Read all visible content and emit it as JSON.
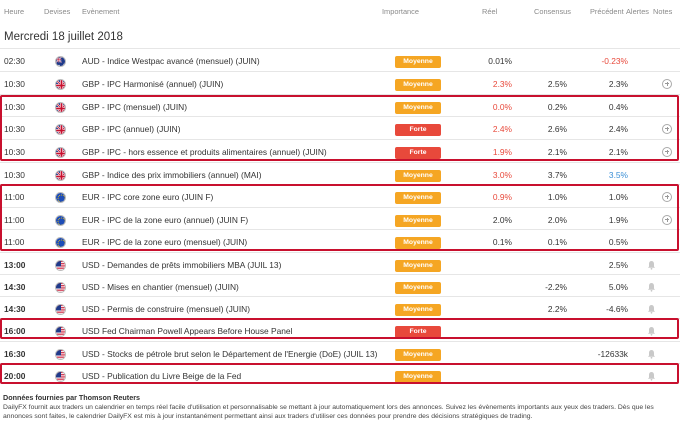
{
  "header": {
    "time": "Heure",
    "currency": "Devises",
    "event": "Evènement",
    "importance": "Importance",
    "actual": "Réel",
    "consensus": "Consensus",
    "previous": "Précédent",
    "alerts": "Alertes",
    "notes": "Notes"
  },
  "date_label": "Mercredi 18 juillet 2018",
  "colors": {
    "medium": "#f5a623",
    "high": "#e8493b",
    "negative": "#e8493b",
    "positive": "#3a8fd6",
    "highlight": "#c8102e"
  },
  "rows": [
    {
      "time": "02:30",
      "flag": "au",
      "event": "AUD - Indice Westpac avancé (mensuel) (JUIN)",
      "importance": "Moyenne",
      "level": "medium",
      "actual": "0.01%",
      "actual_color": "",
      "consensus": "",
      "previous": "-0.23%",
      "previous_color": "red",
      "icon": ""
    },
    {
      "time": "10:30",
      "flag": "gb",
      "event": "GBP - IPC Harmonisé (annuel) (JUIN)",
      "importance": "Moyenne",
      "level": "medium",
      "actual": "2.3%",
      "actual_color": "red",
      "consensus": "2.5%",
      "previous": "2.3%",
      "previous_color": "",
      "icon": "plus"
    },
    {
      "time": "10:30",
      "flag": "gb",
      "event": "GBP - IPC (mensuel) (JUIN)",
      "importance": "Moyenne",
      "level": "medium",
      "actual": "0.0%",
      "actual_color": "red",
      "consensus": "0.2%",
      "previous": "0.4%",
      "previous_color": "",
      "icon": ""
    },
    {
      "time": "10:30",
      "flag": "gb",
      "event": "GBP - IPC (annuel) (JUIN)",
      "importance": "Forte",
      "level": "high",
      "actual": "2.4%",
      "actual_color": "red",
      "consensus": "2.6%",
      "previous": "2.4%",
      "previous_color": "",
      "icon": "plus"
    },
    {
      "time": "10:30",
      "flag": "gb",
      "event": "GBP - IPC - hors essence et produits alimentaires (annuel) (JUIN)",
      "importance": "Forte",
      "level": "high",
      "actual": "1.9%",
      "actual_color": "red",
      "consensus": "2.1%",
      "previous": "2.1%",
      "previous_color": "",
      "icon": "plus"
    },
    {
      "time": "10:30",
      "flag": "gb",
      "event": "GBP - Indice des prix immobiliers (annuel) (MAI)",
      "importance": "Moyenne",
      "level": "medium",
      "actual": "3.0%",
      "actual_color": "red",
      "consensus": "3.7%",
      "previous": "3.5%",
      "previous_color": "blue",
      "icon": ""
    },
    {
      "time": "11:00",
      "flag": "eu",
      "event": "EUR - IPC core zone euro (JUIN F)",
      "importance": "Moyenne",
      "level": "medium",
      "actual": "0.9%",
      "actual_color": "red",
      "consensus": "1.0%",
      "previous": "1.0%",
      "previous_color": "",
      "icon": "plus"
    },
    {
      "time": "11:00",
      "flag": "eu",
      "event": "EUR - IPC de la zone euro (annuel) (JUIN F)",
      "importance": "Moyenne",
      "level": "medium",
      "actual": "2.0%",
      "actual_color": "",
      "consensus": "2.0%",
      "previous": "1.9%",
      "previous_color": "",
      "icon": "plus"
    },
    {
      "time": "11:00",
      "flag": "eu",
      "event": "EUR - IPC de la zone euro (mensuel) (JUIN)",
      "importance": "Moyenne",
      "level": "medium",
      "actual": "0.1%",
      "actual_color": "",
      "consensus": "0.1%",
      "previous": "0.5%",
      "previous_color": "",
      "icon": ""
    },
    {
      "time": "13:00",
      "flag": "us",
      "event": "USD - Demandes de prêts immobiliers MBA (JUIL 13)",
      "importance": "Moyenne",
      "level": "medium",
      "actual": "",
      "actual_color": "",
      "consensus": "",
      "previous": "2.5%",
      "previous_color": "",
      "icon": "bell",
      "bold": true
    },
    {
      "time": "14:30",
      "flag": "us",
      "event": "USD - Mises en chantier (mensuel) (JUIN)",
      "importance": "Moyenne",
      "level": "medium",
      "actual": "",
      "actual_color": "",
      "consensus": "-2.2%",
      "previous": "5.0%",
      "previous_color": "",
      "icon": "bell",
      "bold": true
    },
    {
      "time": "14:30",
      "flag": "us",
      "event": "USD - Permis de construire (mensuel) (JUIN)",
      "importance": "Moyenne",
      "level": "medium",
      "actual": "",
      "actual_color": "",
      "consensus": "2.2%",
      "previous": "-4.6%",
      "previous_color": "",
      "icon": "bell",
      "bold": true
    },
    {
      "time": "16:00",
      "flag": "us",
      "event": "USD Fed Chairman Powell Appears Before House Panel",
      "importance": "Forte",
      "level": "high",
      "actual": "",
      "actual_color": "",
      "consensus": "",
      "previous": "",
      "previous_color": "",
      "icon": "bell",
      "bold": true
    },
    {
      "time": "16:30",
      "flag": "us",
      "event": "USD - Stocks de pétrole brut selon le Département de l'Energie (DoE) (JUIL 13)",
      "importance": "Moyenne",
      "level": "medium",
      "actual": "",
      "actual_color": "",
      "consensus": "",
      "previous": "-12633k",
      "previous_color": "",
      "icon": "bell",
      "bold": true
    },
    {
      "time": "20:00",
      "flag": "us",
      "event": "USD - Publication du Livre Beige de la Fed",
      "importance": "Moyenne",
      "level": "medium",
      "actual": "",
      "actual_color": "",
      "consensus": "",
      "previous": "",
      "previous_color": "",
      "icon": "bell",
      "bold": true
    }
  ],
  "footer": {
    "title": "Données fournies par Thomson Reuters",
    "text": "DailyFX fournit aux traders un calendrier en temps réel facile d'utilisation et personnalisable se mettant à jour automatiquement lors des annonces. Suivez les évènements importants aux yeux des traders. Dès que les annonces sont faites, le calendrier DailyFX est mis à jour instantanément permettant ainsi aux traders d'utiliser ces données pour prendre des décisions stratégiques de trading."
  }
}
